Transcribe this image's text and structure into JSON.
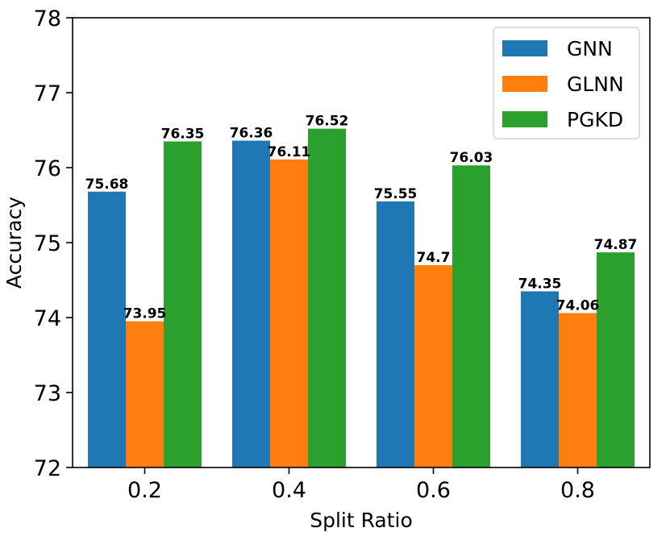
{
  "chart_data": {
    "type": "bar",
    "title": "",
    "xlabel": "Split Ratio",
    "ylabel": "Accuracy",
    "ylim": [
      72,
      78
    ],
    "yticks": [
      "72",
      "73",
      "74",
      "75",
      "76",
      "77",
      "78"
    ],
    "categories": [
      "0.2",
      "0.4",
      "0.6",
      "0.8"
    ],
    "series": [
      {
        "name": "GNN",
        "color": "#1f77b4",
        "values": [
          75.68,
          76.36,
          75.55,
          74.35
        ],
        "labels": [
          "75.68",
          "76.36",
          "75.55",
          "74.35"
        ]
      },
      {
        "name": "GLNN",
        "color": "#ff7f0e",
        "values": [
          73.95,
          76.11,
          74.7,
          74.06
        ],
        "labels": [
          "73.95",
          "76.11",
          "74.7",
          "74.06"
        ]
      },
      {
        "name": "PGKD",
        "color": "#2ca02c",
        "values": [
          76.35,
          76.52,
          76.03,
          74.87
        ],
        "labels": [
          "76.35",
          "76.52",
          "76.03",
          "74.87"
        ]
      }
    ],
    "legend_position": "top-right",
    "grid": false
  }
}
